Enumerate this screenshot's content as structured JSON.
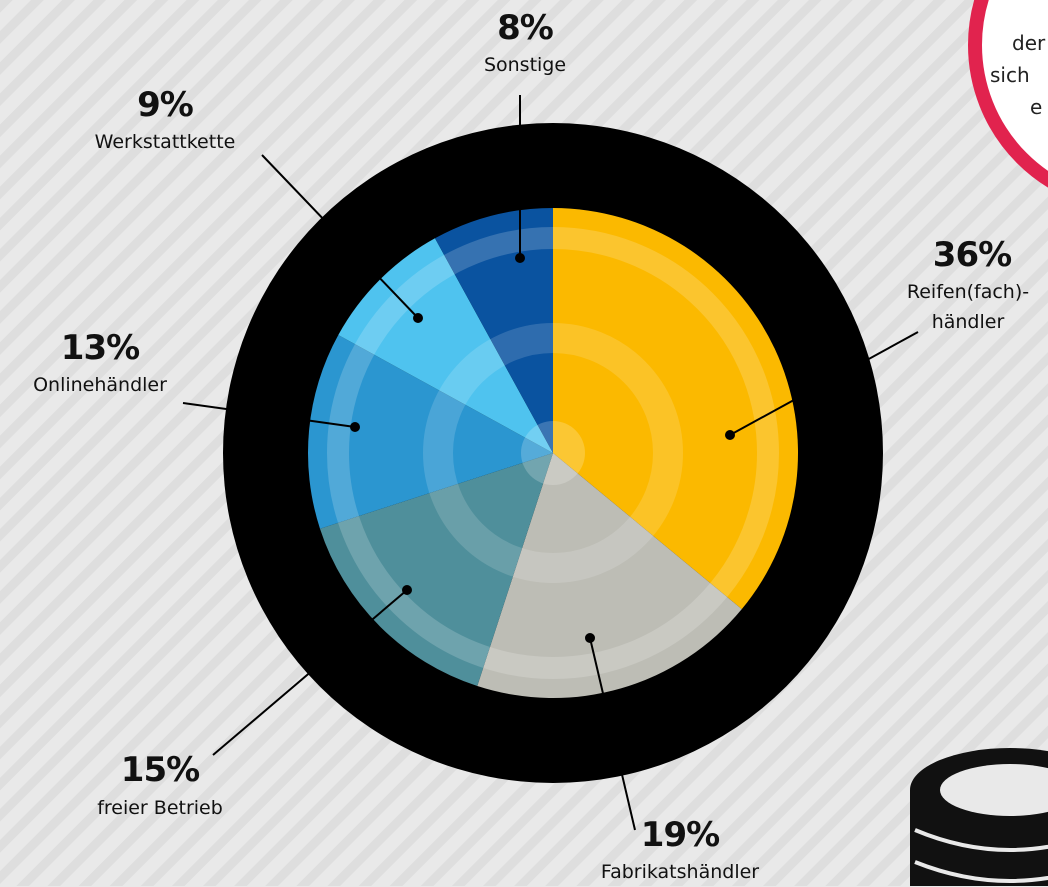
{
  "chart_data": {
    "type": "pie",
    "categories": [
      "Reifen(fach)-händler",
      "Fabrikatshändler",
      "freier Betrieb",
      "Onlinehändler",
      "Werkstattkette",
      "Sonstige"
    ],
    "values": [
      36,
      19,
      15,
      13,
      9,
      8
    ],
    "value_labels": [
      "36%",
      "19%",
      "15%",
      "13%",
      "9%",
      "8%"
    ],
    "colors": [
      "#fbb900",
      "#bdbdb5",
      "#4f8f9b",
      "#2b96d0",
      "#4fc3ef",
      "#0a53a0"
    ],
    "annotations": [
      "der",
      "sich",
      "e"
    ]
  }
}
